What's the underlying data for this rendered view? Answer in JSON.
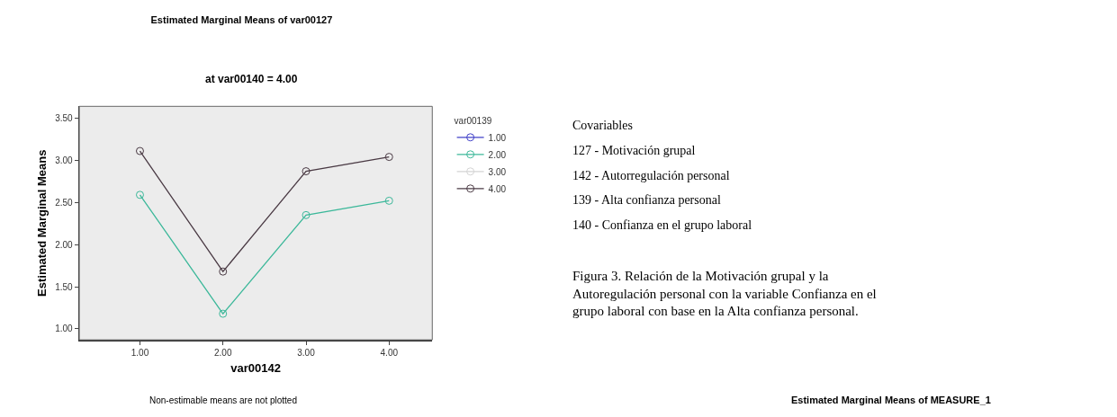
{
  "chart_data": {
    "type": "line",
    "title": "Estimated Marginal Means of var00127",
    "subtitle": "at var00140 = 4.00",
    "xlabel": "var00142",
    "ylabel": "Estimated Marginal Means",
    "legend_title": "var00139",
    "x": [
      1,
      2,
      3,
      4
    ],
    "series": [
      {
        "name": "1.00",
        "color": "#4040c8",
        "values": [
          null,
          null,
          null,
          null
        ]
      },
      {
        "name": "2.00",
        "color": "#3cb89a",
        "values": [
          2.59,
          1.18,
          2.35,
          2.52
        ]
      },
      {
        "name": "3.00",
        "color": "#d4d4d4",
        "values": [
          null,
          null,
          null,
          null
        ]
      },
      {
        "name": "4.00",
        "color": "#4a3a44",
        "values": [
          3.11,
          1.68,
          2.87,
          3.04
        ]
      }
    ],
    "xlim": [
      0.27,
      4.52
    ],
    "xticks": [
      {
        "value": 1,
        "label": "1.00"
      },
      {
        "value": 2,
        "label": "2.00"
      },
      {
        "value": 3,
        "label": "3.00"
      },
      {
        "value": 4,
        "label": "4.00"
      }
    ],
    "ylim": [
      0.87,
      3.64
    ],
    "yticks": [
      {
        "value": 1,
        "label": "1.00"
      },
      {
        "value": 1.5,
        "label": "1.50"
      },
      {
        "value": 2,
        "label": "2.00"
      },
      {
        "value": 2.5,
        "label": "2.50"
      },
      {
        "value": 3,
        "label": "3.00"
      },
      {
        "value": 3.5,
        "label": "3.50"
      }
    ],
    "grid": false,
    "legend": "right",
    "marker": "circle",
    "line_style": "solid",
    "annotations": [
      "Non-estimable means are not plotted",
      "Covariables",
      "127 - Motivación grupal",
      "142 - Autorregulación personal",
      "139 - Alta confianza personal",
      "140 - Confianza en el grupo laboral",
      "Figura 3. Relación de la Motivación grupal y la Autoregulación personal con la variable Confianza en el grupo laboral con base en la Alta confianza personal.",
      "Estimated Marginal Means of MEASURE_1"
    ]
  }
}
